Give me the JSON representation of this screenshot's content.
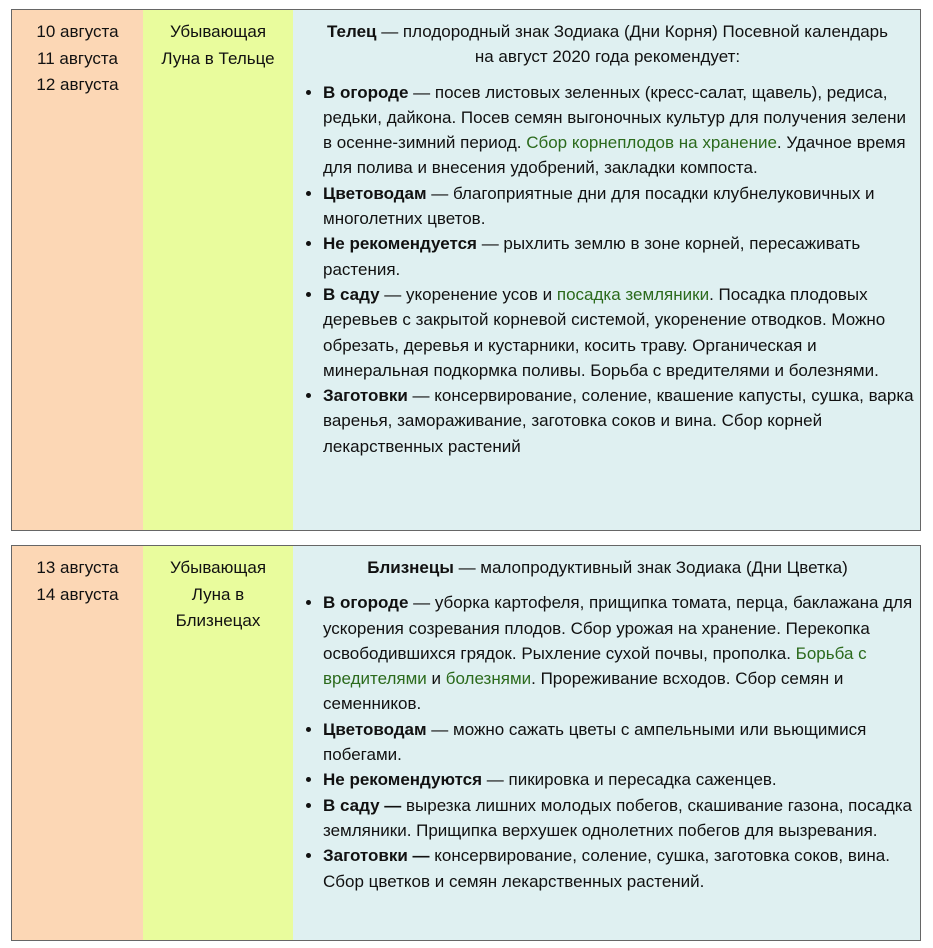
{
  "rows": [
    {
      "dates": [
        "10 августа",
        "11 августа",
        "12 августа"
      ],
      "moon": "Убывающая Луна в Тельце",
      "sign": "Телец",
      "intro": " — плодородный знак Зодиака (Дни Корня) Посевной календарь на август 2020 года рекомендует:",
      "items": [
        [
          {
            "b": "В огороде"
          },
          {
            "t": " — посев листовых зеленных (кресс-салат, щавель), редиса, редьки, дайкона. Посев семян выгоночных культур для получения зелени в осенне-зимний период. "
          },
          {
            "a": "Сбор корнеплодов на хранение"
          },
          {
            "t": ". Удачное время для полива и внесения удобрений, закладки компоста."
          }
        ],
        [
          {
            "b": "Цветоводам"
          },
          {
            "t": " — благоприятные дни для посадки клубнелуковичных и многолетних цветов."
          }
        ],
        [
          {
            "b": "Не рекомендуется"
          },
          {
            "t": " — рыхлить землю в зоне корней, пересаживать растения."
          }
        ],
        [
          {
            "b": "В саду"
          },
          {
            "t": " — укоренение усов и "
          },
          {
            "a": "посадка земляники"
          },
          {
            "t": ". Посадка плодовых деревьев с закрытой корневой системой, укоренение отводков. Можно обрезать, деревья и кустарники, косить траву. Органическая и минеральная подкормка поливы. Борьба с вредителями и болезнями."
          }
        ],
        [
          {
            "b": "Заготовки"
          },
          {
            "t": " — консервирование, соление, квашение капусты, сушка, варка варенья, замораживание, заготовка соков и вина. Сбор корней лекарственных растений"
          }
        ]
      ]
    },
    {
      "dates": [
        "13 августа",
        "14 августа"
      ],
      "moon": "Убывающая Луна в Близнецах",
      "sign": "Близнецы",
      "intro": " — малопродуктивный знак Зодиака (Дни Цветка)",
      "items": [
        [
          {
            "b": "В огороде"
          },
          {
            "t": " — уборка картофеля, прищипка томата, перца, баклажана для ускорения созревания плодов. Сбор урожая на хранение. Перекопка освободившихся грядок. Рыхление сухой почвы, прополка. "
          },
          {
            "a": "Борьба с вредителями"
          },
          {
            "t": " и "
          },
          {
            "a": "болезнями"
          },
          {
            "t": ". Прореживание всходов. Сбор семян и семенников."
          }
        ],
        [
          {
            "b": "Цветоводам"
          },
          {
            "t": " — можно сажать цветы с ампельными или вьющимися побегами."
          }
        ],
        [
          {
            "b": "Не рекомендуются"
          },
          {
            "t": " — пикировка и пересадка саженцев."
          }
        ],
        [
          {
            "b": "В саду —"
          },
          {
            "t": " вырезка лишних молодых побегов, скашивание газона, посадка земляники. Прищипка верхушек однолетних побегов для вызревания."
          }
        ],
        [
          {
            "b": "Заготовки —"
          },
          {
            "t": " консервирование, соление, сушка, заготовка соков, вина. Сбор цветков и семян лекарственных растений."
          }
        ]
      ]
    }
  ]
}
